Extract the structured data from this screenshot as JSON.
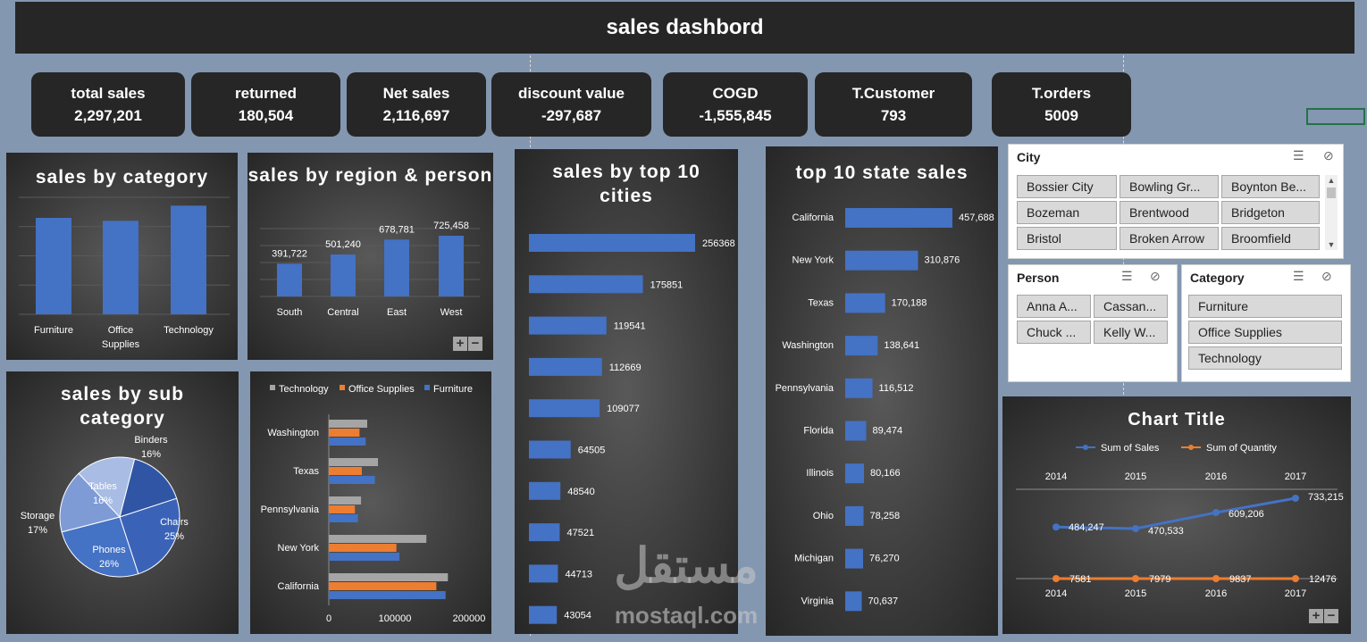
{
  "dashboard": {
    "title": "sales dashbord"
  },
  "kpis": [
    {
      "label": "total sales",
      "value": "2,297,201"
    },
    {
      "label": "returned",
      "value": "180,504"
    },
    {
      "label": "Net sales",
      "value": "2,116,697"
    },
    {
      "label": "discount value",
      "value": "-297,687"
    },
    {
      "label": "COGD",
      "value": "-1,555,845"
    },
    {
      "label": "T.Customer",
      "value": "793"
    },
    {
      "label": "T.orders",
      "value": "5009"
    }
  ],
  "colors": {
    "blue": "#4472c4",
    "orange": "#ed7d31",
    "gray": "#a5a5a5",
    "panel": "#262626",
    "page": "#8497b0"
  },
  "charts": {
    "category": {
      "title": "sales by category",
      "chart_data": {
        "type": "bar",
        "categories": [
          "Furniture",
          "Office Supplies",
          "Technology"
        ],
        "values": [
          742000,
          719000,
          836000
        ]
      }
    },
    "region": {
      "title": "sales by region & person",
      "chart_data": {
        "type": "bar",
        "categories": [
          "South",
          "Central",
          "East",
          "West"
        ],
        "values": [
          391722,
          501240,
          678781,
          725458
        ],
        "labels": [
          "391,722",
          "501,240",
          "678,781",
          "725,458"
        ]
      }
    },
    "subcategory": {
      "title": "sales by sub category",
      "chart_data": {
        "type": "pie",
        "slices": [
          {
            "label": "Binders",
            "pct": 16
          },
          {
            "label": "Chairs",
            "pct": 25
          },
          {
            "label": "Phones",
            "pct": 26
          },
          {
            "label": "Storage",
            "pct": 17
          },
          {
            "label": "Tables",
            "pct": 16
          }
        ]
      }
    },
    "state_category": {
      "legend": [
        "Technology",
        "Office Supplies",
        "Furniture"
      ],
      "chart_data": {
        "type": "bar",
        "orientation": "horizontal",
        "categories": [
          "Washington",
          "Texas",
          "Pennsylvania",
          "New York",
          "California"
        ],
        "series": [
          {
            "name": "Technology",
            "values": [
              50000,
              64000,
              42000,
              127000,
              155000
            ]
          },
          {
            "name": "Office Supplies",
            "values": [
              40000,
              43000,
              34000,
              88000,
              140000
            ]
          },
          {
            "name": "Furniture",
            "values": [
              48000,
              60000,
              38000,
              92000,
              152000
            ]
          }
        ],
        "xticks": [
          "0",
          "100000",
          "200000"
        ],
        "xlim": [
          0,
          200000
        ]
      }
    },
    "cities": {
      "title": "sales by top 10 cities",
      "chart_data": {
        "type": "bar",
        "orientation": "horizontal",
        "values": [
          256368,
          175851,
          119541,
          112669,
          109077,
          64505,
          48540,
          47521,
          44713,
          43054
        ],
        "labels": [
          "256368",
          "175851",
          "119541",
          "112669",
          "109077",
          "64505",
          "48540",
          "47521",
          "44713",
          "43054"
        ]
      }
    },
    "states": {
      "title": "top 10 state sales",
      "chart_data": {
        "type": "bar",
        "orientation": "horizontal",
        "categories": [
          "California",
          "New York",
          "Texas",
          "Washington",
          "Pennsylvania",
          "Florida",
          "Illinois",
          "Ohio",
          "Michigan",
          "Virginia"
        ],
        "values": [
          457688,
          310876,
          170188,
          138641,
          116512,
          89474,
          80166,
          78258,
          76270,
          70637
        ],
        "labels": [
          "457,688",
          "310,876",
          "170,188",
          "138,641",
          "116,512",
          "89,474",
          "80,166",
          "78,258",
          "76,270",
          "70,637"
        ]
      }
    },
    "trend": {
      "title": "Chart Title",
      "chart_data": {
        "type": "line",
        "x": [
          "2014",
          "2015",
          "2016",
          "2017"
        ],
        "series": [
          {
            "name": "Sum of Sales",
            "values": [
              484247,
              470533,
              609206,
              733215
            ],
            "labels": [
              "484,247",
              "470,533",
              "609,206",
              "733,215"
            ]
          },
          {
            "name": "Sum of Quantity",
            "values": [
              7581,
              7979,
              9837,
              12476
            ],
            "labels": [
              "7581",
              "7979",
              "9837",
              "12476"
            ]
          }
        ]
      }
    }
  },
  "slicers": {
    "city": {
      "header": "City",
      "items": [
        "Bossier City",
        "Bowling Gr...",
        "Boynton Be...",
        "Bozeman",
        "Brentwood",
        "Bridgeton",
        "Bristol",
        "Broken Arrow",
        "Broomfield"
      ]
    },
    "person": {
      "header": "Person",
      "items": [
        "Anna A...",
        "Cassan...",
        "Chuck ...",
        "Kelly W..."
      ]
    },
    "category": {
      "header": "Category",
      "items": [
        "Furniture",
        "Office Supplies",
        "Technology"
      ]
    }
  },
  "watermark": {
    "arabic": "مستقل",
    "latin": "mostaql.com"
  }
}
